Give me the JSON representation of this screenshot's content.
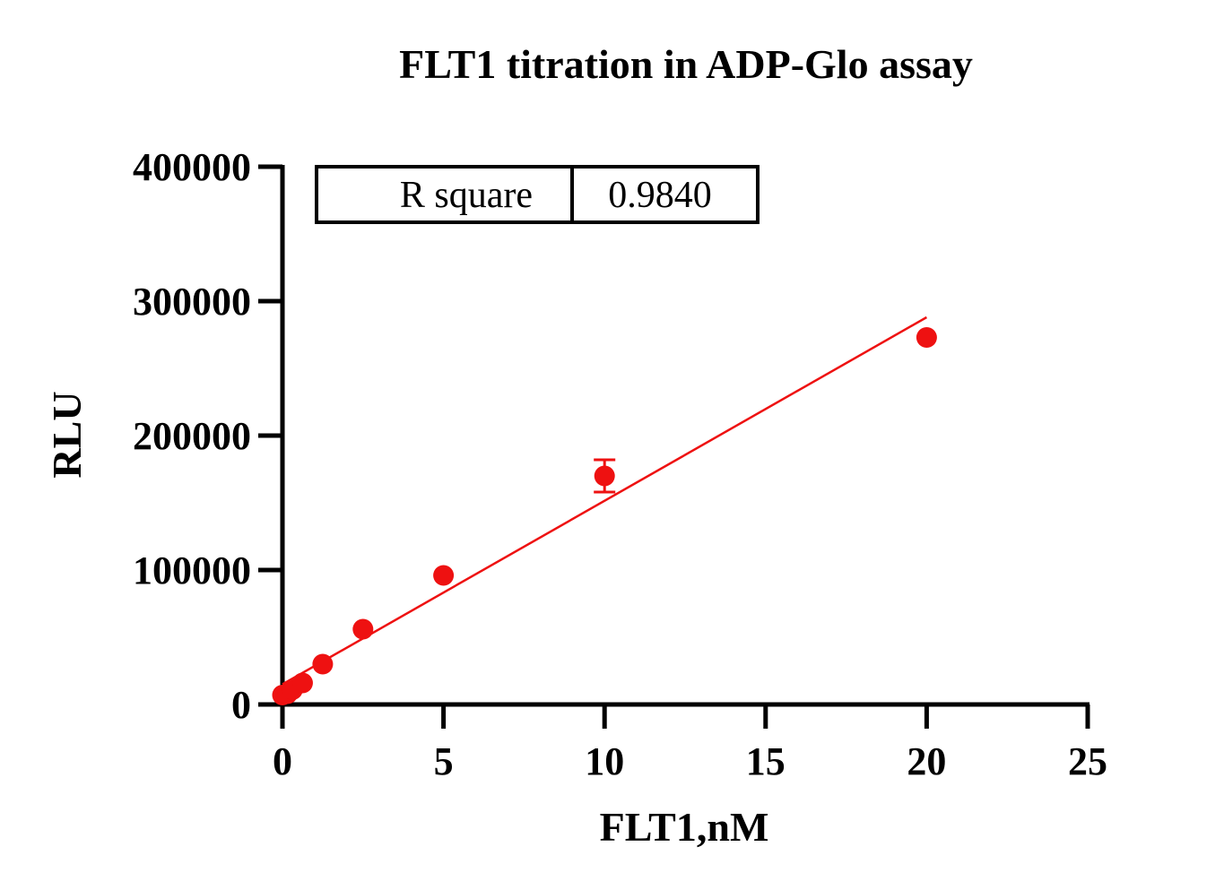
{
  "chart_data": {
    "type": "scatter",
    "title": "FLT1 titration in ADP-Glo assay",
    "xlabel": "FLT1,nM",
    "ylabel": "RLU",
    "xlim": [
      0,
      25
    ],
    "ylim": [
      0,
      400000
    ],
    "x_ticks": [
      0,
      5,
      10,
      15,
      20,
      25
    ],
    "x_tick_labels": [
      "0",
      "5",
      "10",
      "15",
      "20",
      "25"
    ],
    "y_ticks": [
      0,
      100000,
      200000,
      300000,
      400000
    ],
    "y_tick_labels": [
      "0",
      "100000",
      "200000",
      "300000",
      "400000"
    ],
    "grid": false,
    "legend": "none",
    "series": [
      {
        "color": "#ee1111",
        "points": [
          {
            "x": 0,
            "y": 7000,
            "err": 0
          },
          {
            "x": 0.156,
            "y": 8000,
            "err": 0
          },
          {
            "x": 0.3125,
            "y": 11000,
            "err": 0
          },
          {
            "x": 0.625,
            "y": 16000,
            "err": 0
          },
          {
            "x": 1.25,
            "y": 30000,
            "err": 0
          },
          {
            "x": 2.5,
            "y": 56000,
            "err": 0
          },
          {
            "x": 5,
            "y": 96000,
            "err": 0
          },
          {
            "x": 10,
            "y": 170000,
            "err": 12000
          },
          {
            "x": 20,
            "y": 273000,
            "err": 0
          }
        ]
      }
    ],
    "fit_line": {
      "x": [
        0,
        20
      ],
      "y": [
        15000,
        288000
      ],
      "color": "#ee1111"
    },
    "stats_table": {
      "label": "R square",
      "value": "0.9840"
    }
  }
}
